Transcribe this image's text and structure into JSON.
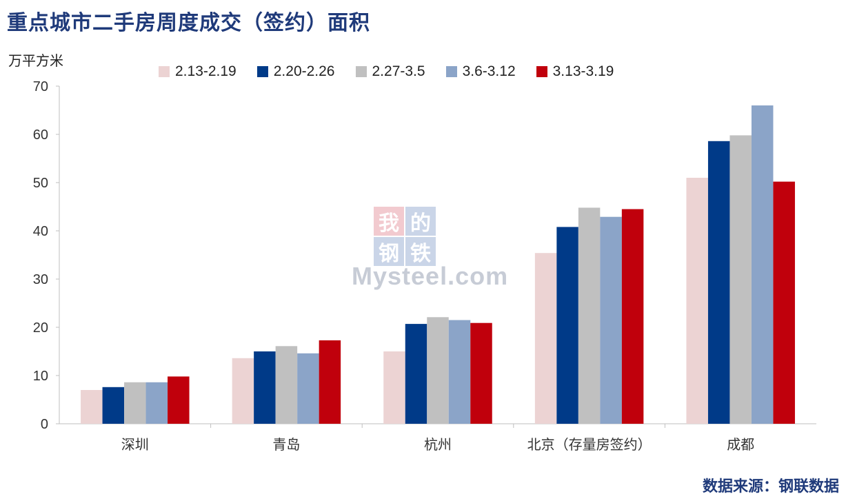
{
  "header": {
    "title": "重点城市二手房周度成交（签约）面积",
    "unit": "万平方米",
    "source": "数据来源：钢联数据"
  },
  "watermark": {
    "chars": [
      "我",
      "的",
      "钢",
      "铁"
    ],
    "colors": [
      "#e8a0a8",
      "#9fb3d6",
      "#9fb3d6",
      "#9fb3d6"
    ],
    "text": "Mysteel.com"
  },
  "chart_data": {
    "type": "bar",
    "title": "重点城市二手房周度成交（签约）面积",
    "ylabel": "万平方米",
    "xlabel": "",
    "ylim": [
      0,
      70
    ],
    "yticks": [
      0,
      10,
      20,
      30,
      40,
      50,
      60,
      70
    ],
    "grid": false,
    "legend": "top",
    "categories": [
      "深圳",
      "青岛",
      "杭州",
      "北京（存量房签约）",
      "成都"
    ],
    "series": [
      {
        "name": "2.13-2.19",
        "color": "#ecd3d3",
        "values": [
          7.0,
          13.6,
          15.0,
          35.4,
          51.0
        ]
      },
      {
        "name": "2.20-2.26",
        "color": "#003a88",
        "values": [
          7.6,
          15.0,
          20.7,
          40.8,
          58.6
        ]
      },
      {
        "name": "2.27-3.5",
        "color": "#c0c0c0",
        "values": [
          8.6,
          16.1,
          22.1,
          44.8,
          59.8
        ]
      },
      {
        "name": "3.6-3.12",
        "color": "#8ba4c8",
        "values": [
          8.6,
          14.6,
          21.5,
          42.9,
          66.0
        ]
      },
      {
        "name": "3.13-3.19",
        "color": "#c0000c",
        "values": [
          9.8,
          17.3,
          20.9,
          44.5,
          50.2
        ]
      }
    ]
  }
}
